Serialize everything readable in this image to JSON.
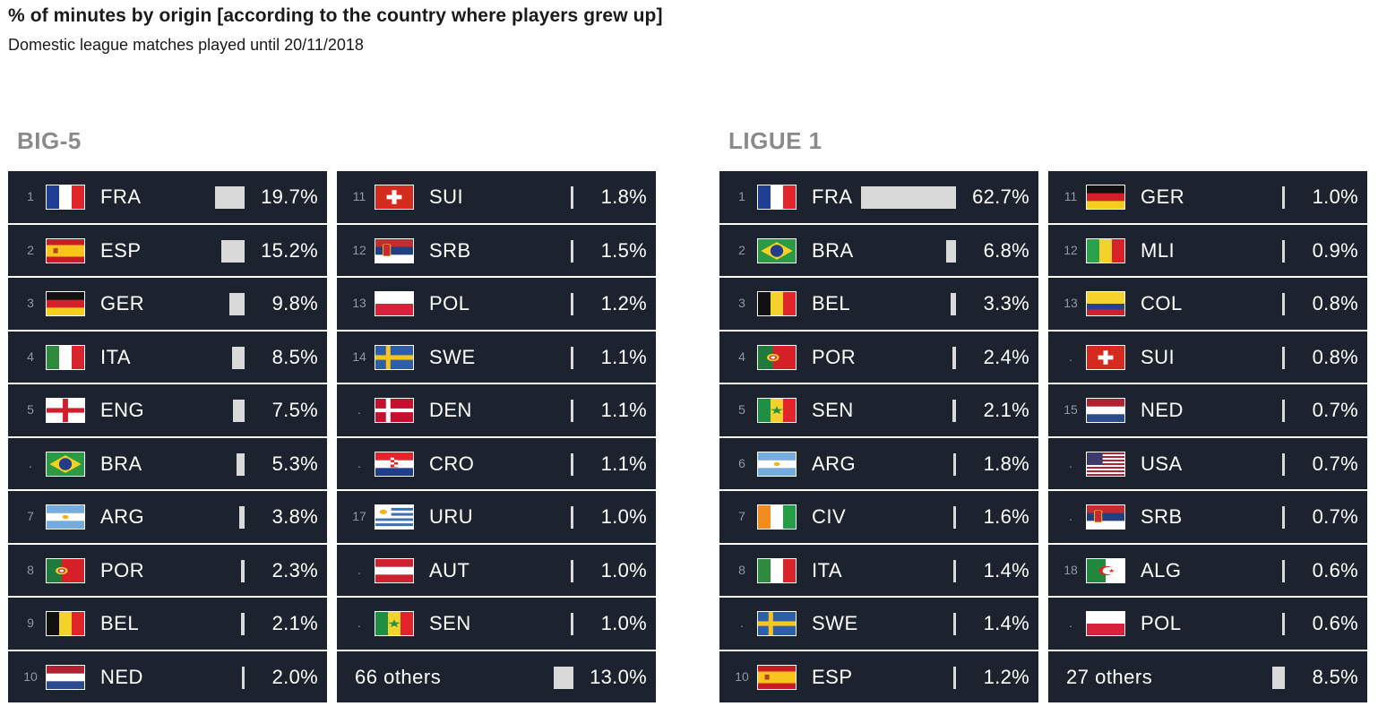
{
  "title": "% of minutes by origin [according to the country where players grew up]",
  "subtitle": "Domestic league matches played until 20/11/2018",
  "colors": {
    "row_bg": "#1c232e",
    "bar": "#d9d9d9",
    "section_title": "#8a8a8a"
  },
  "chart_data": [
    {
      "type": "bar",
      "title": "BIG-5",
      "unit": "%",
      "columns": [
        [
          {
            "rank": "1",
            "code": "FRA",
            "flag": "fra-flag",
            "value": 19.7,
            "label": "19.7%"
          },
          {
            "rank": "2",
            "code": "ESP",
            "flag": "esp-flag",
            "value": 15.2,
            "label": "15.2%"
          },
          {
            "rank": "3",
            "code": "GER",
            "flag": "ger-flag",
            "value": 9.8,
            "label": "9.8%"
          },
          {
            "rank": "4",
            "code": "ITA",
            "flag": "ita-flag",
            "value": 8.5,
            "label": "8.5%"
          },
          {
            "rank": "5",
            "code": "ENG",
            "flag": "eng-flag",
            "value": 7.5,
            "label": "7.5%"
          },
          {
            "rank": ".",
            "code": "BRA",
            "flag": "bra-flag",
            "value": 5.3,
            "label": "5.3%"
          },
          {
            "rank": "7",
            "code": "ARG",
            "flag": "arg-flag",
            "value": 3.8,
            "label": "3.8%"
          },
          {
            "rank": "8",
            "code": "POR",
            "flag": "por-flag",
            "value": 2.3,
            "label": "2.3%"
          },
          {
            "rank": "9",
            "code": "BEL",
            "flag": "bel-flag",
            "value": 2.1,
            "label": "2.1%"
          },
          {
            "rank": "10",
            "code": "NED",
            "flag": "ned-flag",
            "value": 2.0,
            "label": "2.0%"
          }
        ],
        [
          {
            "rank": "11",
            "code": "SUI",
            "flag": "sui-flag",
            "value": 1.8,
            "label": "1.8%"
          },
          {
            "rank": "12",
            "code": "SRB",
            "flag": "srb-flag",
            "value": 1.5,
            "label": "1.5%"
          },
          {
            "rank": "13",
            "code": "POL",
            "flag": "pol-flag",
            "value": 1.2,
            "label": "1.2%"
          },
          {
            "rank": "14",
            "code": "SWE",
            "flag": "swe-flag",
            "value": 1.1,
            "label": "1.1%"
          },
          {
            "rank": ".",
            "code": "DEN",
            "flag": "den-flag",
            "value": 1.1,
            "label": "1.1%"
          },
          {
            "rank": ".",
            "code": "CRO",
            "flag": "cro-flag",
            "value": 1.1,
            "label": "1.1%"
          },
          {
            "rank": "17",
            "code": "URU",
            "flag": "uru-flag",
            "value": 1.0,
            "label": "1.0%"
          },
          {
            "rank": ".",
            "code": "AUT",
            "flag": "aut-flag",
            "value": 1.0,
            "label": "1.0%"
          },
          {
            "rank": ".",
            "code": "SEN",
            "flag": "sen-flag",
            "value": 1.0,
            "label": "1.0%"
          },
          {
            "others": true,
            "code": "66 others",
            "value": 13.0,
            "label": "13.0%"
          }
        ]
      ]
    },
    {
      "type": "bar",
      "title": "LIGUE 1",
      "unit": "%",
      "columns": [
        [
          {
            "rank": "1",
            "code": "FRA",
            "flag": "fra-flag",
            "value": 62.7,
            "label": "62.7%"
          },
          {
            "rank": "2",
            "code": "BRA",
            "flag": "bra-flag",
            "value": 6.8,
            "label": "6.8%"
          },
          {
            "rank": "3",
            "code": "BEL",
            "flag": "bel-flag",
            "value": 3.3,
            "label": "3.3%"
          },
          {
            "rank": "4",
            "code": "POR",
            "flag": "por-flag",
            "value": 2.4,
            "label": "2.4%"
          },
          {
            "rank": "5",
            "code": "SEN",
            "flag": "sen-flag",
            "value": 2.1,
            "label": "2.1%"
          },
          {
            "rank": "6",
            "code": "ARG",
            "flag": "arg-flag",
            "value": 1.8,
            "label": "1.8%"
          },
          {
            "rank": "7",
            "code": "CIV",
            "flag": "civ-flag",
            "value": 1.6,
            "label": "1.6%"
          },
          {
            "rank": "8",
            "code": "ITA",
            "flag": "ita-flag",
            "value": 1.4,
            "label": "1.4%"
          },
          {
            "rank": ".",
            "code": "SWE",
            "flag": "swe-flag",
            "value": 1.4,
            "label": "1.4%"
          },
          {
            "rank": "10",
            "code": "ESP",
            "flag": "esp-flag",
            "value": 1.2,
            "label": "1.2%"
          }
        ],
        [
          {
            "rank": "11",
            "code": "GER",
            "flag": "ger-flag",
            "value": 1.0,
            "label": "1.0%"
          },
          {
            "rank": "12",
            "code": "MLI",
            "flag": "mli-flag",
            "value": 0.9,
            "label": "0.9%"
          },
          {
            "rank": "13",
            "code": "COL",
            "flag": "col-flag",
            "value": 0.8,
            "label": "0.8%"
          },
          {
            "rank": ".",
            "code": "SUI",
            "flag": "sui-flag",
            "value": 0.8,
            "label": "0.8%"
          },
          {
            "rank": "15",
            "code": "NED",
            "flag": "ned-flag",
            "value": 0.7,
            "label": "0.7%"
          },
          {
            "rank": ".",
            "code": "USA",
            "flag": "usa-flag",
            "value": 0.7,
            "label": "0.7%"
          },
          {
            "rank": ".",
            "code": "SRB",
            "flag": "srb-flag",
            "value": 0.7,
            "label": "0.7%"
          },
          {
            "rank": "18",
            "code": "ALG",
            "flag": "alg-flag",
            "value": 0.6,
            "label": "0.6%"
          },
          {
            "rank": ".",
            "code": "POL",
            "flag": "pol-flag",
            "value": 0.6,
            "label": "0.6%"
          },
          {
            "others": true,
            "code": "27 others",
            "value": 8.5,
            "label": "8.5%"
          }
        ]
      ]
    }
  ]
}
